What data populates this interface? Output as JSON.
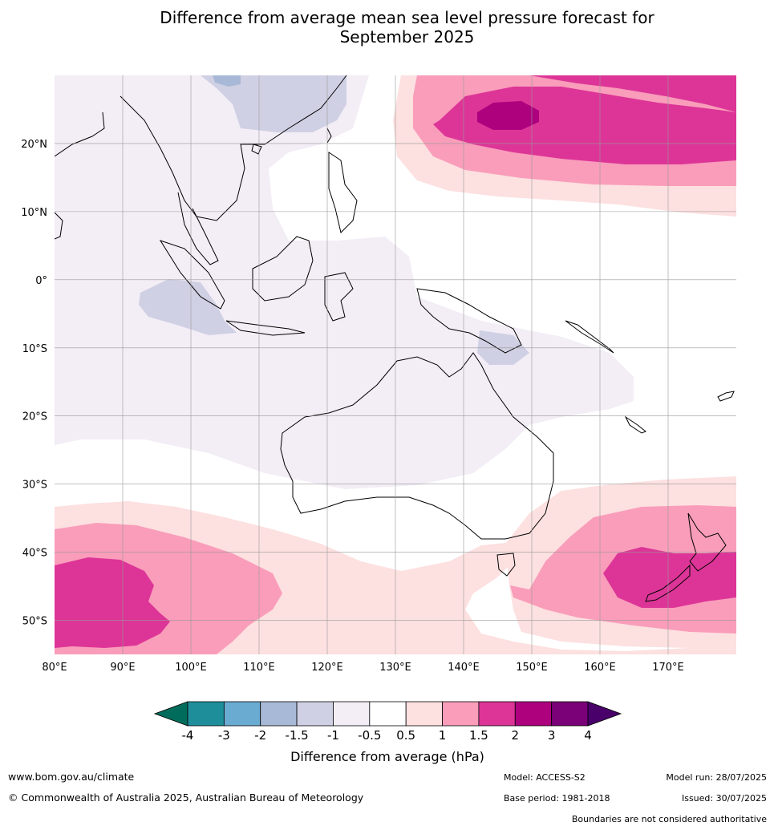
{
  "title": {
    "line1": "Difference from average mean sea level pressure forecast for",
    "line2": "September 2025"
  },
  "map": {
    "lon_range": [
      80,
      180
    ],
    "lat_range": [
      -55,
      30
    ],
    "lon_ticks": [
      "80°E",
      "90°E",
      "100°E",
      "110°E",
      "120°E",
      "130°E",
      "140°E",
      "150°E",
      "160°E",
      "170°E"
    ],
    "lat_ticks": [
      "20°N",
      "10°N",
      "0°",
      "10°S",
      "20°S",
      "30°S",
      "40°S",
      "50°S"
    ],
    "gridlines": true
  },
  "colorbar": {
    "label": "Difference from average (hPa)",
    "ticks": [
      "-4",
      "-3",
      "-2",
      "-1.5",
      "-1",
      "-0.5",
      "0.5",
      "1",
      "1.5",
      "2",
      "3",
      "4"
    ],
    "colors": [
      "#006c5c",
      "#1e8e9a",
      "#6aabd2",
      "#a7b9d6",
      "#d0d0e4",
      "#f3edf6",
      "#ffffff",
      "#fde0e0",
      "#f99dba",
      "#dd3597",
      "#ad017e",
      "#7a0177",
      "#4a006a"
    ]
  },
  "footer": {
    "website": "www.bom.gov.au/climate",
    "copyright": "© Commonwealth of Australia 2025, Australian Bureau of Meteorology",
    "model": "Model: ACCESS-S2",
    "base_period": "Base period: 1981-2018",
    "model_run": "Model run: 28/07/2025",
    "issued": "Issued: 30/07/2025",
    "disclaimer": "Boundaries are not considered authoritative"
  }
}
